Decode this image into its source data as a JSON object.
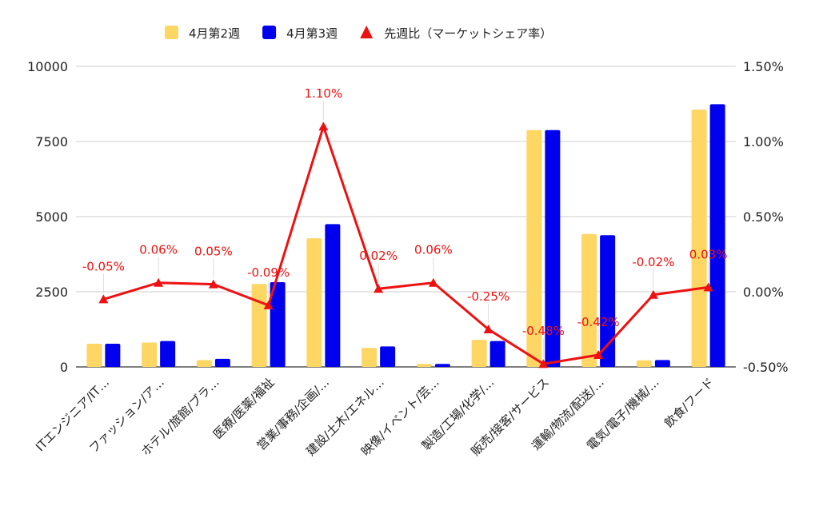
{
  "chart_data": {
    "type": "bar",
    "title": "",
    "categories": [
      "ITエンジニア/IT…",
      "ファッション/ア…",
      "ホテル/旅館/ブラ…",
      "医療/医薬/福祉",
      "営業/事務/企画/…",
      "建設/土木/エネル…",
      "映像/イベント/芸…",
      "製造/工場/化学/…",
      "販売/接客/サービス",
      "運輸/物流/配送/…",
      "電気/電子/機械/…",
      "飲食/フード"
    ],
    "series": [
      {
        "name": "4月第2週",
        "type": "bar",
        "axis": "left",
        "color": "#FDD663",
        "values": [
          770,
          810,
          230,
          2760,
          4280,
          630,
          100,
          900,
          7880,
          4420,
          220,
          8560
        ]
      },
      {
        "name": "4月第3週",
        "type": "bar",
        "axis": "left",
        "color": "#0000EE",
        "values": [
          770,
          860,
          270,
          2820,
          4750,
          680,
          100,
          860,
          7880,
          4380,
          230,
          8740
        ]
      },
      {
        "name": "先週比（マーケットシェア率）",
        "type": "line",
        "axis": "right",
        "color": "#EE1111",
        "marker": "triangle",
        "values": [
          -0.05,
          0.06,
          0.05,
          -0.09,
          1.1,
          0.02,
          0.06,
          -0.25,
          -0.48,
          -0.42,
          -0.02,
          0.03
        ],
        "labels": [
          "-0.05%",
          "0.06%",
          "0.05%",
          "-0.09%",
          "1.10%",
          "0.02%",
          "0.06%",
          "-0.25%",
          "-0.48%",
          "-0.42%",
          "-0.02%",
          "0.03%"
        ]
      }
    ],
    "y_left": {
      "ylim": [
        0,
        10000
      ],
      "ticks": [
        "10000",
        "7500",
        "5000",
        "2500",
        "0"
      ]
    },
    "y_right": {
      "ylim": [
        -0.5,
        1.5
      ],
      "ticks": [
        "1.50%",
        "1.00%",
        "0.50%",
        "0.00%",
        "-0.50%"
      ]
    },
    "legend": {
      "position": "top"
    },
    "grid": true
  }
}
